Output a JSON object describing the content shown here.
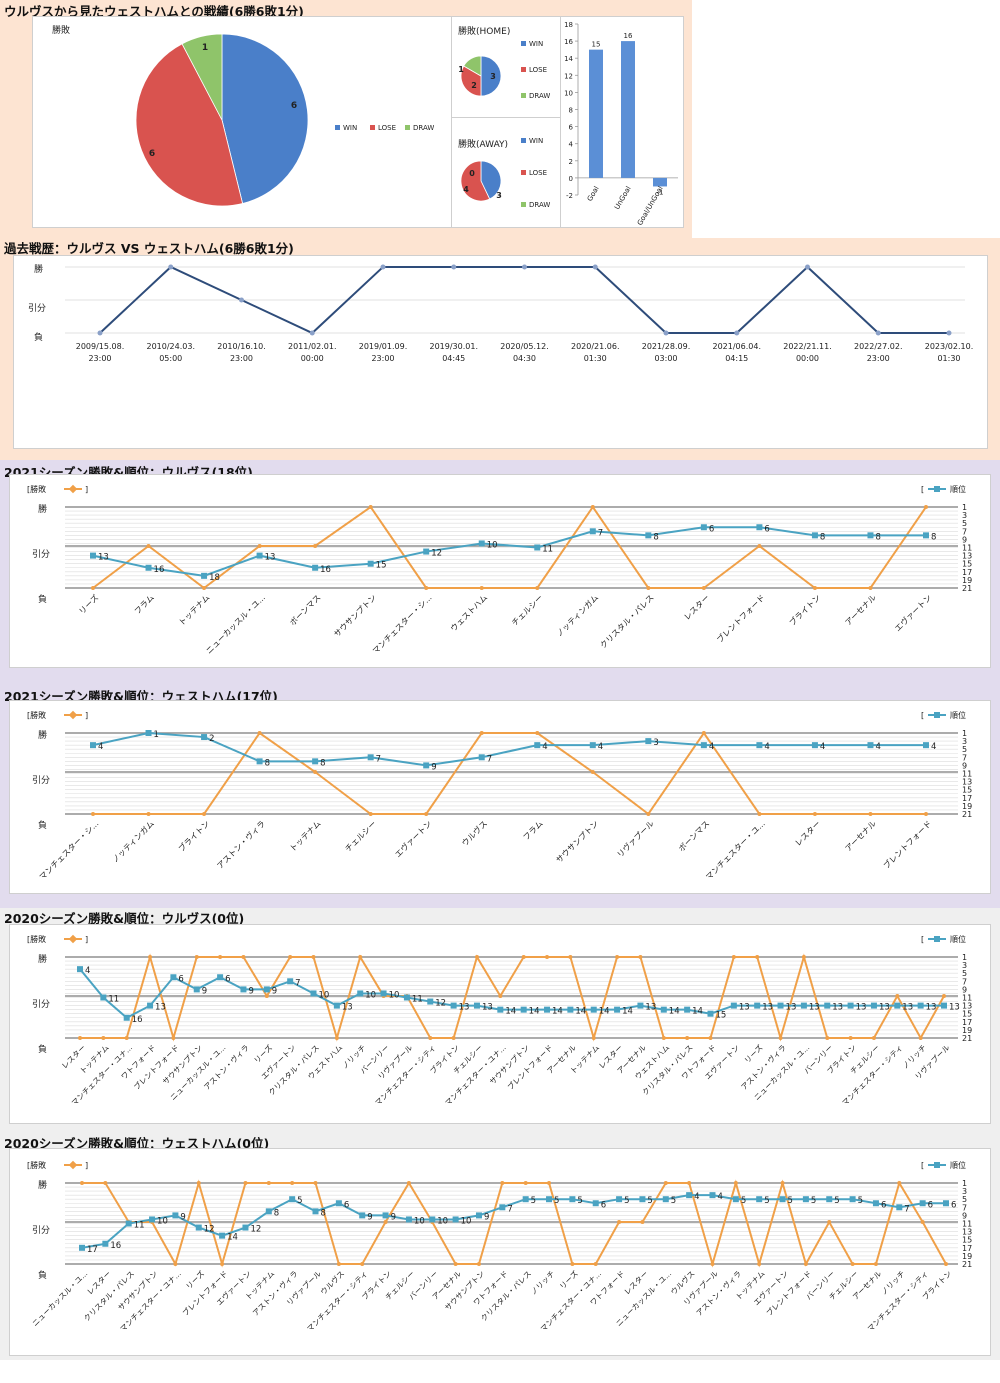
{
  "colors": {
    "win": "#4a7fc9",
    "lose": "#d9534f",
    "draw": "#8fc46a",
    "navy": "#2e4c7a",
    "orange": "#f0a048",
    "teal": "#4aa3c2",
    "bar": "#5b8fd6"
  },
  "sections": {
    "summary_title": "ウルヴスから見たウェストハムとの戦績(6勝6敗1分)",
    "history_title": "過去戦歴：ウルヴス VS ウェストハム(6勝6敗1分)",
    "s2021_wol_title": "2021シーズン勝敗&順位：ウルヴス(18位)",
    "s2021_whu_title": "2021シーズン勝敗&順位：ウェストハム(17位)",
    "s2020_wol_title": "2020シーズン勝敗&順位：ウルヴス(0位)",
    "s2020_whu_title": "2020シーズン勝敗&順位：ウェストハム(0位)"
  },
  "common": {
    "y_win": "勝",
    "y_draw": "引分",
    "y_lose": "負",
    "legend_result": "[勝敗",
    "legend_rank": "順位]",
    "rank_ticks": [
      "1",
      "3",
      "5",
      "7",
      "9",
      "11",
      "13",
      "15",
      "17",
      "19",
      "21"
    ]
  },
  "chart_data": [
    {
      "type": "pie",
      "title": "勝敗",
      "labels": [
        "WIN",
        "LOSE",
        "DRAW"
      ],
      "values": [
        6,
        6,
        1
      ]
    },
    {
      "type": "pie",
      "title": "勝敗(HOME)",
      "labels": [
        "WIN",
        "LOSE",
        "DRAW"
      ],
      "values": [
        3,
        2,
        1
      ]
    },
    {
      "type": "pie",
      "title": "勝敗(AWAY)",
      "labels": [
        "WIN",
        "LOSE",
        "DRAW"
      ],
      "values": [
        3,
        4,
        0
      ]
    },
    {
      "type": "bar",
      "categories": [
        "Goal",
        "UnGoal",
        "Goal/UnGoal"
      ],
      "values": [
        15,
        16,
        -1
      ],
      "ylim": [
        -2,
        18
      ],
      "yticks": [
        -2,
        0,
        2,
        4,
        6,
        8,
        10,
        12,
        14,
        16,
        18
      ]
    },
    {
      "type": "line",
      "name": "history",
      "x": [
        "2009/15.08.|23:00",
        "2010/24.03.|05:00",
        "2010/16.10.|23:00",
        "2011/02.01.|00:00",
        "2019/01.09.|23:00",
        "2019/30.01.|04:45",
        "2020/05.12.|04:30",
        "2020/21.06.|01:30",
        "2021/28.09.|03:00",
        "2021/06.04.|04:15",
        "2022/21.11.|00:00",
        "2022/27.02.|23:00",
        "2023/02.10.|01:30"
      ],
      "results": [
        0,
        2,
        1,
        0,
        2,
        2,
        2,
        2,
        0,
        0,
        2,
        0,
        0
      ]
    },
    {
      "type": "line",
      "name": "2021-wolves",
      "opponents": [
        "リーズ",
        "フラム",
        "トッテナム",
        "ニューカッスル・ユ...",
        "ボーンマス",
        "サウサンプトン",
        "マンチェスター・シ...",
        "ウェストハム",
        "チェルシー",
        "ノッティンガム",
        "クリスタル・パレス",
        "レスター",
        "ブレントフォード",
        "ブライトン",
        "アーセナル",
        "エヴァートン"
      ],
      "results": [
        0,
        1,
        0,
        1,
        1,
        2,
        0,
        0,
        0,
        2,
        0,
        0,
        1,
        0,
        0,
        2
      ],
      "ranks": [
        13,
        16,
        18,
        13,
        16,
        15,
        12,
        10,
        11,
        7,
        8,
        6,
        6,
        8,
        8,
        8
      ]
    },
    {
      "type": "line",
      "name": "2021-westham",
      "opponents": [
        "マンチェスター・シ...",
        "ノッティンガム",
        "ブライトン",
        "アストン・ヴィラ",
        "トッテナム",
        "チェルシー",
        "エヴァートン",
        "ウルヴス",
        "フラム",
        "サウサンプトン",
        "リヴァプール",
        "ボーンマス",
        "マンチェスター・ユ...",
        "レスター",
        "アーセナル",
        "ブレントフォード"
      ],
      "results": [
        0,
        0,
        0,
        2,
        1,
        0,
        0,
        2,
        2,
        1,
        0,
        2,
        0,
        0,
        0,
        0
      ],
      "ranks": [
        4,
        1,
        2,
        8,
        8,
        7,
        9,
        7,
        4,
        4,
        3,
        4,
        4,
        4,
        4,
        4
      ]
    },
    {
      "type": "line",
      "name": "2020-wolves",
      "opponents": [
        "レスター",
        "トッテナム",
        "マンチェスター・ユナ...",
        "ワトフォード",
        "ブレントフォード",
        "サウサンプトン",
        "ニューカッスル・ユ...",
        "アストン・ヴィラ",
        "リーズ",
        "エヴァートン",
        "クリスタル・パレス",
        "ウェストハム",
        "ノリッチ",
        "バーンリー",
        "リヴァプール",
        "マンチェスター・シティ",
        "ブライトン",
        "チェルシー",
        "マンチェスター・ユナ...",
        "サウサンプトン",
        "ブレントフォード",
        "アーセナル",
        "トッテナム",
        "レスター",
        "アーセナル",
        "ウェストハム",
        "クリスタル・パレス",
        "ワトフォード",
        "エヴァートン",
        "リーズ",
        "アストン・ヴィラ",
        "ニューカッスル・ユ...",
        "バーンリー",
        "ブライトン",
        "チェルシー",
        "マンチェスター・シティ",
        "ノリッチ",
        "リヴァプール"
      ],
      "results": [
        0,
        0,
        0,
        2,
        0,
        2,
        2,
        2,
        1,
        2,
        2,
        0,
        2,
        1,
        1,
        0,
        0,
        2,
        1,
        2,
        2,
        2,
        0,
        2,
        2,
        0,
        0,
        0,
        2,
        2,
        0,
        2,
        0,
        0,
        0,
        1,
        0,
        1
      ],
      "ranks": [
        4,
        11,
        16,
        13,
        6,
        9,
        6,
        9,
        9,
        7,
        10,
        13,
        10,
        10,
        11,
        12,
        13,
        13,
        14,
        14,
        14,
        14,
        14,
        14,
        13,
        14,
        14,
        15,
        13,
        13,
        13,
        13,
        13,
        13,
        13,
        13,
        13,
        13
      ]
    },
    {
      "type": "line",
      "name": "2020-westham",
      "opponents": [
        "ニューカッスル・ユ...",
        "レスター",
        "クリスタル・パレス",
        "サウサンプトン",
        "マンチェスター・ユナ...",
        "リーズ",
        "ブレントフォード",
        "エヴァートン",
        "トッテナム",
        "アストン・ヴィラ",
        "リヴァプール",
        "ウルヴス",
        "マンチェスター・シティ",
        "ブライトン",
        "チェルシー",
        "バーンリー",
        "アーセナル",
        "サウサンプトン",
        "ワトフォード",
        "クリスタル・パレス",
        "ノリッチ",
        "リーズ",
        "マンチェスター・ユナ...",
        "ワトフォード",
        "レスター",
        "ニューカッスル・ユ...",
        "ウルヴス",
        "リヴァプール",
        "アストン・ヴィラ",
        "トッテナム",
        "エヴァートン",
        "ブレントフォード",
        "バーンリー",
        "チェルシー",
        "アーセナル",
        "ノリッチ",
        "マンチェスター・シティ",
        "ブライトン"
      ],
      "results": [
        2,
        2,
        1,
        1,
        0,
        2,
        0,
        2,
        2,
        2,
        2,
        0,
        0,
        1,
        2,
        1,
        0,
        0,
        2,
        2,
        2,
        0,
        0,
        1,
        1,
        2,
        2,
        0,
        2,
        0,
        2,
        0,
        1,
        0,
        0,
        2,
        1,
        0
      ],
      "ranks": [
        17,
        16,
        11,
        10,
        9,
        12,
        14,
        12,
        8,
        5,
        8,
        6,
        9,
        9,
        10,
        10,
        10,
        9,
        7,
        5,
        5,
        5,
        6,
        5,
        5,
        5,
        4,
        4,
        5,
        5,
        5,
        5,
        5,
        5,
        6,
        7,
        6,
        6
      ]
    }
  ]
}
